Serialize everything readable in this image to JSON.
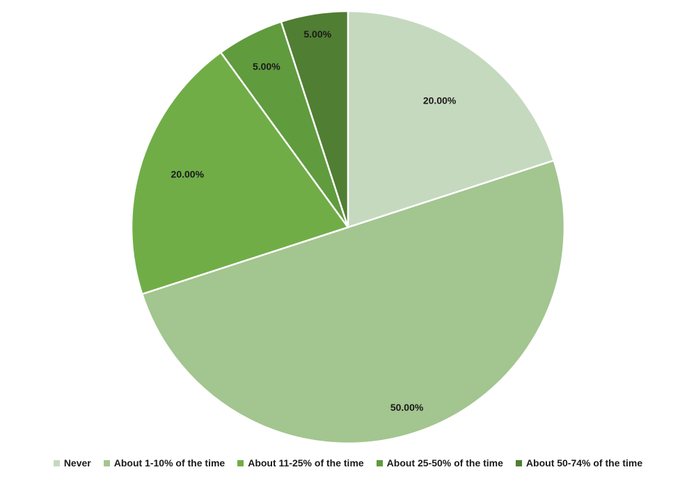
{
  "chart_data": {
    "type": "pie",
    "title": "",
    "categories": [
      "Never",
      "About 1-10% of the time",
      "About 11-25% of the time",
      "About 25-50% of the time",
      "About 50-74% of the time"
    ],
    "values": [
      20,
      50,
      20,
      5,
      5
    ],
    "data_labels": [
      "20.00%",
      "50.00%",
      "20.00%",
      "5.00%",
      "5.00%"
    ],
    "colors": [
      "#c5d9be",
      "#a3c58f",
      "#70ad47",
      "#609b3e",
      "#507e32"
    ],
    "start_angle": "12 o'clock",
    "direction": "clockwise",
    "legend_position": "bottom"
  }
}
